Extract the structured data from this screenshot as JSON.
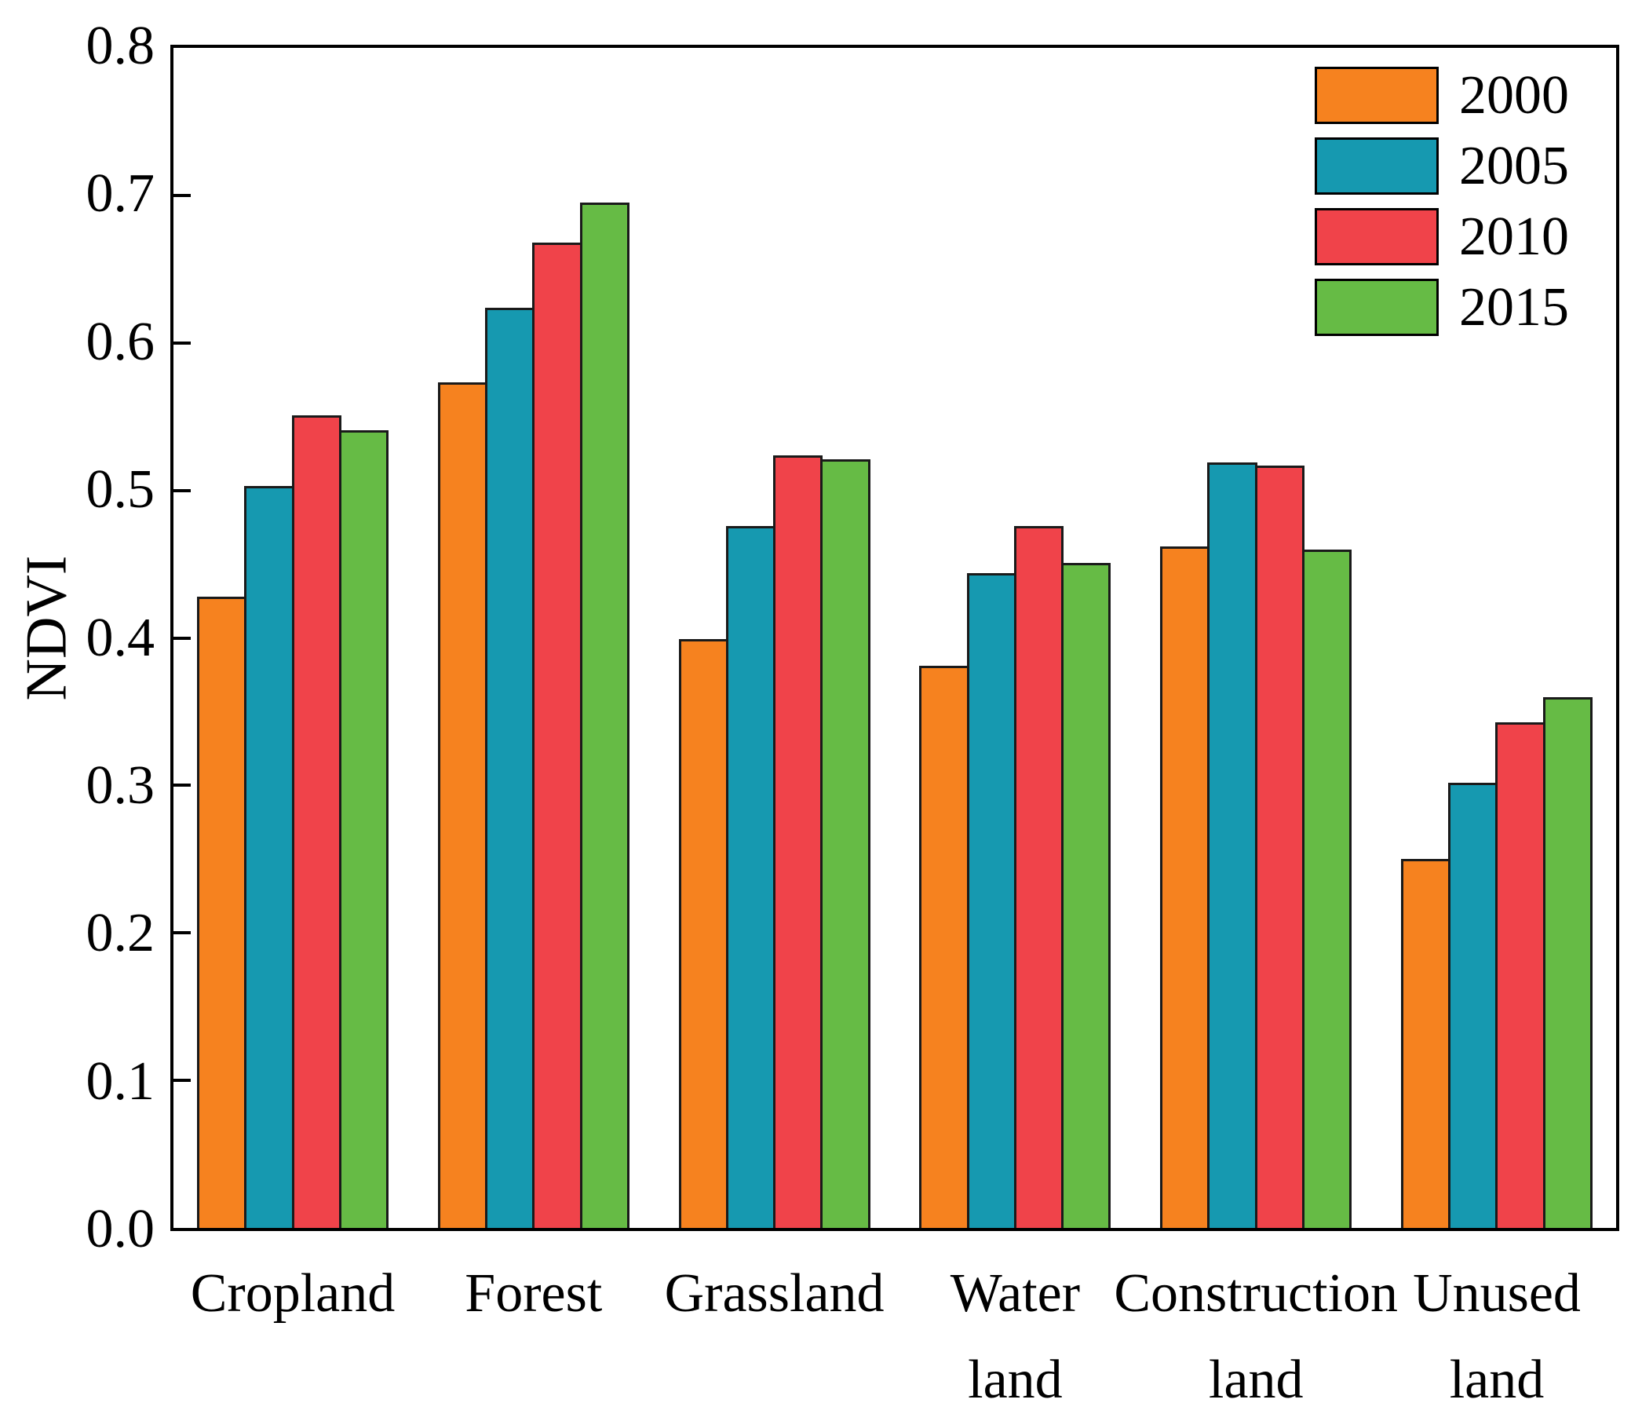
{
  "figure": {
    "background": "#FFFFFF",
    "axis_color": "#000000",
    "bar_outline_color": "#1A1A1A"
  },
  "chart_data": {
    "type": "bar",
    "title": "",
    "xlabel": "",
    "ylabel": "NDVI",
    "ylim": [
      0.0,
      0.8
    ],
    "yticks": [
      0.0,
      0.1,
      0.2,
      0.3,
      0.4,
      0.5,
      0.6,
      0.7,
      0.8
    ],
    "grid": false,
    "legend_position": "top-right-inside",
    "categories": [
      "Cropland",
      "Forest",
      "Grassland",
      "Water land",
      "Construction land",
      "Unused land"
    ],
    "category_label_lines": [
      [
        "Cropland"
      ],
      [
        "Forest"
      ],
      [
        "Grassland"
      ],
      [
        "Water",
        "land"
      ],
      [
        "Construction",
        "land"
      ],
      [
        "Unused",
        "land"
      ]
    ],
    "series": [
      {
        "name": "2000",
        "color": "#F6821F",
        "values": [
          0.428,
          0.573,
          0.399,
          0.381,
          0.462,
          0.25
        ]
      },
      {
        "name": "2005",
        "color": "#1699B0",
        "values": [
          0.503,
          0.624,
          0.476,
          0.444,
          0.519,
          0.302
        ]
      },
      {
        "name": "2010",
        "color": "#F0434A",
        "values": [
          0.551,
          0.668,
          0.524,
          0.476,
          0.517,
          0.343
        ]
      },
      {
        "name": "2015",
        "color": "#66BB45",
        "values": [
          0.541,
          0.695,
          0.521,
          0.451,
          0.46,
          0.36
        ]
      }
    ]
  }
}
